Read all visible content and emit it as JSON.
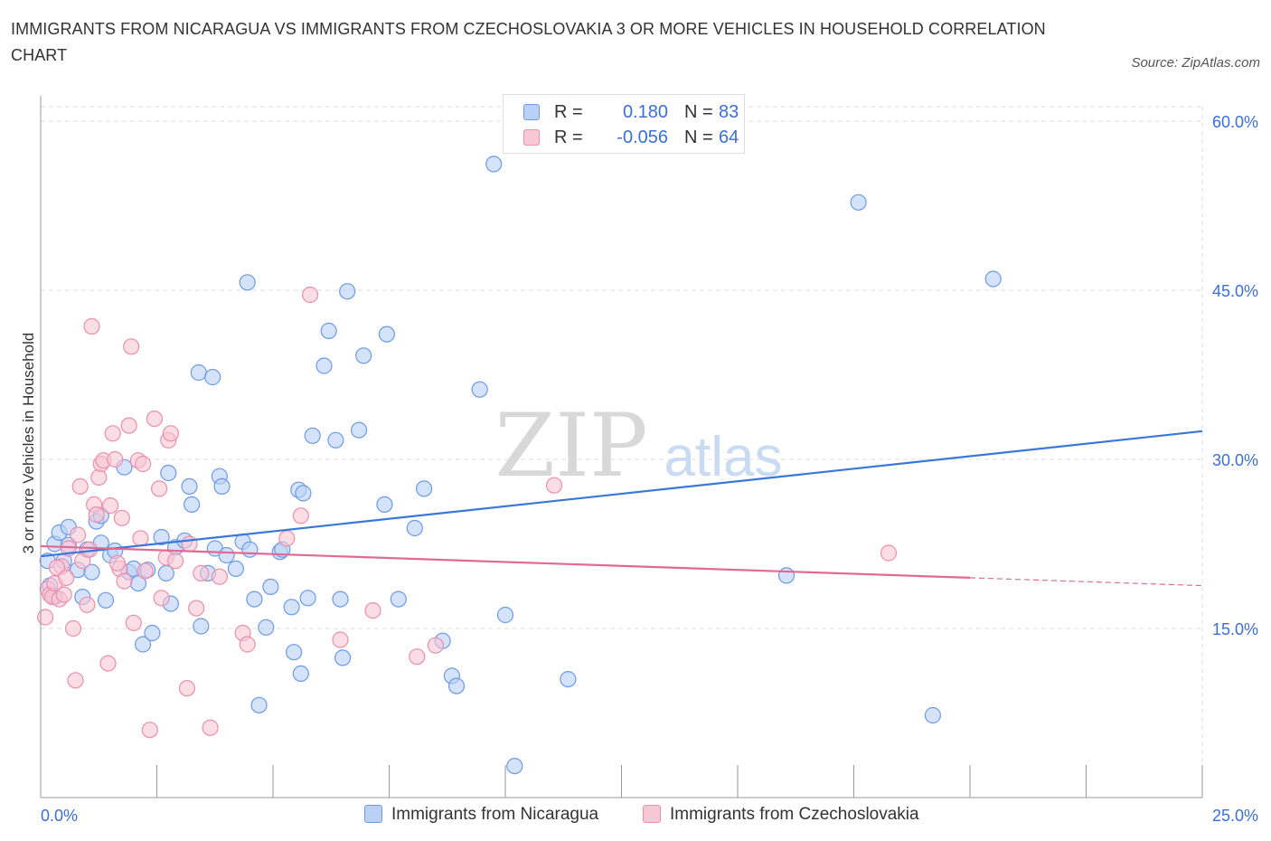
{
  "header": {
    "title": "IMMIGRANTS FROM NICARAGUA VS IMMIGRANTS FROM CZECHOSLOVAKIA 3 OR MORE VEHICLES IN HOUSEHOLD CORRELATION CHART",
    "source": "Source: ZipAtlas.com"
  },
  "watermark": {
    "zip": "ZIP",
    "atlas": "atlas"
  },
  "colors": {
    "blue": "#3a78d8",
    "blue_fill": "#b9d1f6",
    "blue_edge": "#6d9ae6",
    "pink": "#e06a93",
    "pink_fill": "#f8c7d6",
    "pink_edge": "#ea8fac",
    "grid": "#dddddd",
    "axis_label": "#3a6fd8"
  },
  "legend_top": {
    "rows": [
      {
        "r_label": "R =",
        "r_value": "0.180",
        "n_label": "N =",
        "n_value": "83"
      },
      {
        "r_label": "R =",
        "r_value": "-0.056",
        "n_label": "N =",
        "n_value": "64"
      }
    ]
  },
  "legend_bottom": {
    "series1": "Immigrants from Nicaragua",
    "series2": "Immigrants from Czechoslovakia"
  },
  "chart_data": {
    "type": "scatter",
    "title": "IMMIGRANTS FROM NICARAGUA VS IMMIGRANTS FROM CZECHOSLOVAKIA 3 OR MORE VEHICLES IN HOUSEHOLD CORRELATION CHART",
    "xlabel": "",
    "ylabel": "3 or more Vehicles in Household",
    "xlim": [
      0,
      25
    ],
    "ylim": [
      0,
      60
    ],
    "x_tick_labels": [
      "0.0%",
      "25.0%"
    ],
    "y_ticks": [
      15,
      30,
      45,
      60
    ],
    "y_tick_labels": [
      "15.0%",
      "30.0%",
      "45.0%",
      "60.0%"
    ],
    "grid": true,
    "series": [
      {
        "name": "Immigrants from Nicaragua",
        "r": 0.18,
        "n": 83,
        "trend": {
          "x": [
            0,
            25
          ],
          "y": [
            21.4,
            32.5
          ]
        },
        "points": [
          [
            0.2,
            18.8
          ],
          [
            0.3,
            22.5
          ],
          [
            0.3,
            17.8
          ],
          [
            0.4,
            23.5
          ],
          [
            0.5,
            21.0
          ],
          [
            0.6,
            22.4
          ],
          [
            0.6,
            24.0
          ],
          [
            0.8,
            20.2
          ],
          [
            0.9,
            17.8
          ],
          [
            1.0,
            22.0
          ],
          [
            1.1,
            20.0
          ],
          [
            1.2,
            24.5
          ],
          [
            1.3,
            22.6
          ],
          [
            1.4,
            17.5
          ],
          [
            1.5,
            21.5
          ],
          [
            1.6,
            21.9
          ],
          [
            1.8,
            29.3
          ],
          [
            1.9,
            20.0
          ],
          [
            2.0,
            20.3
          ],
          [
            2.1,
            19.0
          ],
          [
            2.2,
            13.6
          ],
          [
            2.3,
            20.2
          ],
          [
            2.4,
            14.6
          ],
          [
            2.6,
            23.1
          ],
          [
            2.7,
            19.9
          ],
          [
            2.75,
            28.8
          ],
          [
            2.9,
            22.2
          ],
          [
            3.1,
            22.8
          ],
          [
            3.2,
            27.6
          ],
          [
            3.25,
            26.0
          ],
          [
            3.4,
            37.7
          ],
          [
            3.45,
            15.2
          ],
          [
            3.6,
            19.9
          ],
          [
            3.7,
            37.3
          ],
          [
            3.75,
            22.1
          ],
          [
            3.85,
            28.5
          ],
          [
            3.9,
            27.6
          ],
          [
            4.2,
            20.3
          ],
          [
            4.35,
            22.7
          ],
          [
            4.45,
            45.7
          ],
          [
            4.5,
            22.0
          ],
          [
            4.6,
            17.6
          ],
          [
            4.7,
            8.2
          ],
          [
            4.85,
            15.1
          ],
          [
            4.95,
            18.7
          ],
          [
            5.15,
            21.8
          ],
          [
            5.2,
            22.0
          ],
          [
            5.4,
            16.9
          ],
          [
            5.45,
            12.9
          ],
          [
            5.55,
            27.3
          ],
          [
            5.6,
            11.0
          ],
          [
            5.65,
            27.0
          ],
          [
            5.75,
            17.7
          ],
          [
            5.85,
            32.1
          ],
          [
            6.1,
            38.3
          ],
          [
            6.2,
            41.4
          ],
          [
            6.35,
            31.7
          ],
          [
            6.45,
            17.6
          ],
          [
            6.5,
            12.4
          ],
          [
            6.6,
            44.9
          ],
          [
            6.85,
            32.6
          ],
          [
            6.95,
            39.2
          ],
          [
            7.4,
            26.0
          ],
          [
            7.45,
            41.1
          ],
          [
            7.7,
            17.6
          ],
          [
            8.05,
            23.9
          ],
          [
            8.25,
            27.4
          ],
          [
            8.65,
            13.9
          ],
          [
            8.85,
            10.8
          ],
          [
            8.95,
            9.9
          ],
          [
            9.45,
            36.2
          ],
          [
            9.75,
            56.2
          ],
          [
            10.0,
            16.2
          ],
          [
            10.2,
            2.8
          ],
          [
            11.35,
            10.5
          ],
          [
            16.05,
            19.7
          ],
          [
            17.6,
            52.8
          ],
          [
            19.2,
            7.3
          ],
          [
            20.5,
            46.0
          ],
          [
            0.15,
            21.0
          ],
          [
            1.3,
            25.0
          ],
          [
            2.8,
            17.2
          ],
          [
            4.0,
            21.5
          ]
        ]
      },
      {
        "name": "Immigrants from Czechoslovakia",
        "r": -0.056,
        "n": 64,
        "trend": {
          "x": [
            0,
            20
          ],
          "y": [
            22.3,
            19.5
          ]
        },
        "trend_extension": {
          "x": [
            20,
            25
          ],
          "y": [
            19.5,
            18.8
          ]
        },
        "points": [
          [
            0.1,
            16.0
          ],
          [
            0.15,
            18.5
          ],
          [
            0.2,
            18.0
          ],
          [
            0.25,
            17.8
          ],
          [
            0.3,
            19.0
          ],
          [
            0.4,
            17.6
          ],
          [
            0.45,
            20.5
          ],
          [
            0.5,
            18.0
          ],
          [
            0.6,
            22.1
          ],
          [
            0.7,
            15.0
          ],
          [
            0.75,
            10.4
          ],
          [
            0.8,
            23.3
          ],
          [
            0.85,
            27.6
          ],
          [
            0.9,
            21.0
          ],
          [
            1.0,
            17.1
          ],
          [
            1.1,
            41.8
          ],
          [
            1.15,
            26.0
          ],
          [
            1.2,
            25.1
          ],
          [
            1.25,
            28.4
          ],
          [
            1.3,
            29.6
          ],
          [
            1.35,
            29.9
          ],
          [
            1.45,
            11.9
          ],
          [
            1.5,
            25.9
          ],
          [
            1.55,
            32.3
          ],
          [
            1.6,
            30.0
          ],
          [
            1.7,
            20.3
          ],
          [
            1.75,
            24.8
          ],
          [
            1.8,
            19.2
          ],
          [
            1.9,
            33.0
          ],
          [
            1.95,
            40.0
          ],
          [
            2.0,
            15.5
          ],
          [
            2.1,
            29.9
          ],
          [
            2.15,
            23.0
          ],
          [
            2.2,
            29.6
          ],
          [
            2.25,
            20.1
          ],
          [
            2.35,
            6.0
          ],
          [
            2.45,
            33.6
          ],
          [
            2.55,
            27.4
          ],
          [
            2.6,
            17.7
          ],
          [
            2.7,
            21.3
          ],
          [
            2.75,
            31.7
          ],
          [
            2.8,
            32.3
          ],
          [
            3.15,
            9.7
          ],
          [
            3.2,
            22.5
          ],
          [
            3.35,
            16.8
          ],
          [
            3.45,
            19.9
          ],
          [
            3.65,
            6.2
          ],
          [
            3.85,
            19.6
          ],
          [
            4.35,
            14.6
          ],
          [
            4.45,
            13.6
          ],
          [
            5.3,
            23.0
          ],
          [
            5.6,
            25.0
          ],
          [
            5.8,
            44.6
          ],
          [
            6.45,
            14.0
          ],
          [
            7.15,
            16.6
          ],
          [
            8.1,
            12.5
          ],
          [
            8.5,
            13.5
          ],
          [
            11.05,
            27.7
          ],
          [
            18.25,
            21.7
          ],
          [
            0.35,
            20.4
          ],
          [
            1.05,
            22.0
          ],
          [
            1.65,
            20.8
          ],
          [
            2.9,
            21.0
          ],
          [
            0.55,
            19.5
          ]
        ]
      }
    ]
  }
}
